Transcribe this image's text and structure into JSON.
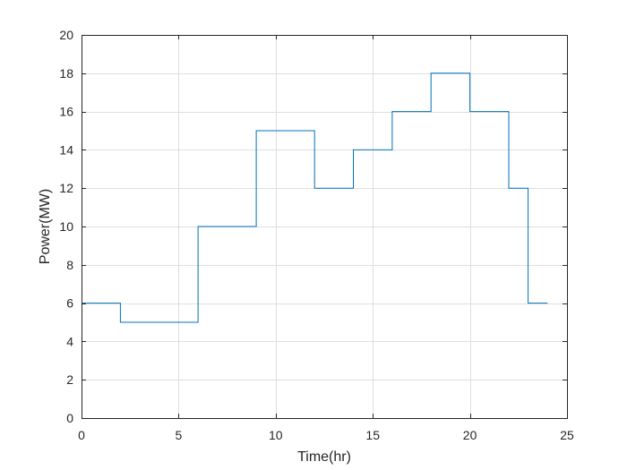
{
  "chart_data": {
    "type": "line",
    "subtype": "step",
    "title": "",
    "xlabel": "Time(hr)",
    "ylabel": "Power(MW)",
    "xlim": [
      0,
      25
    ],
    "ylim": [
      0,
      20
    ],
    "xticks": [
      0,
      5,
      10,
      15,
      20,
      25
    ],
    "yticks": [
      0,
      2,
      4,
      6,
      8,
      10,
      12,
      14,
      16,
      18,
      20
    ],
    "grid": true,
    "box": true,
    "line_color": "#0072BD",
    "series": [
      {
        "x": [
          0,
          2,
          6,
          9,
          12,
          14,
          16,
          18,
          20,
          22,
          23,
          24
        ],
        "y": [
          6,
          5,
          10,
          15,
          12,
          14,
          16,
          18,
          16,
          12,
          6,
          6
        ]
      }
    ]
  }
}
